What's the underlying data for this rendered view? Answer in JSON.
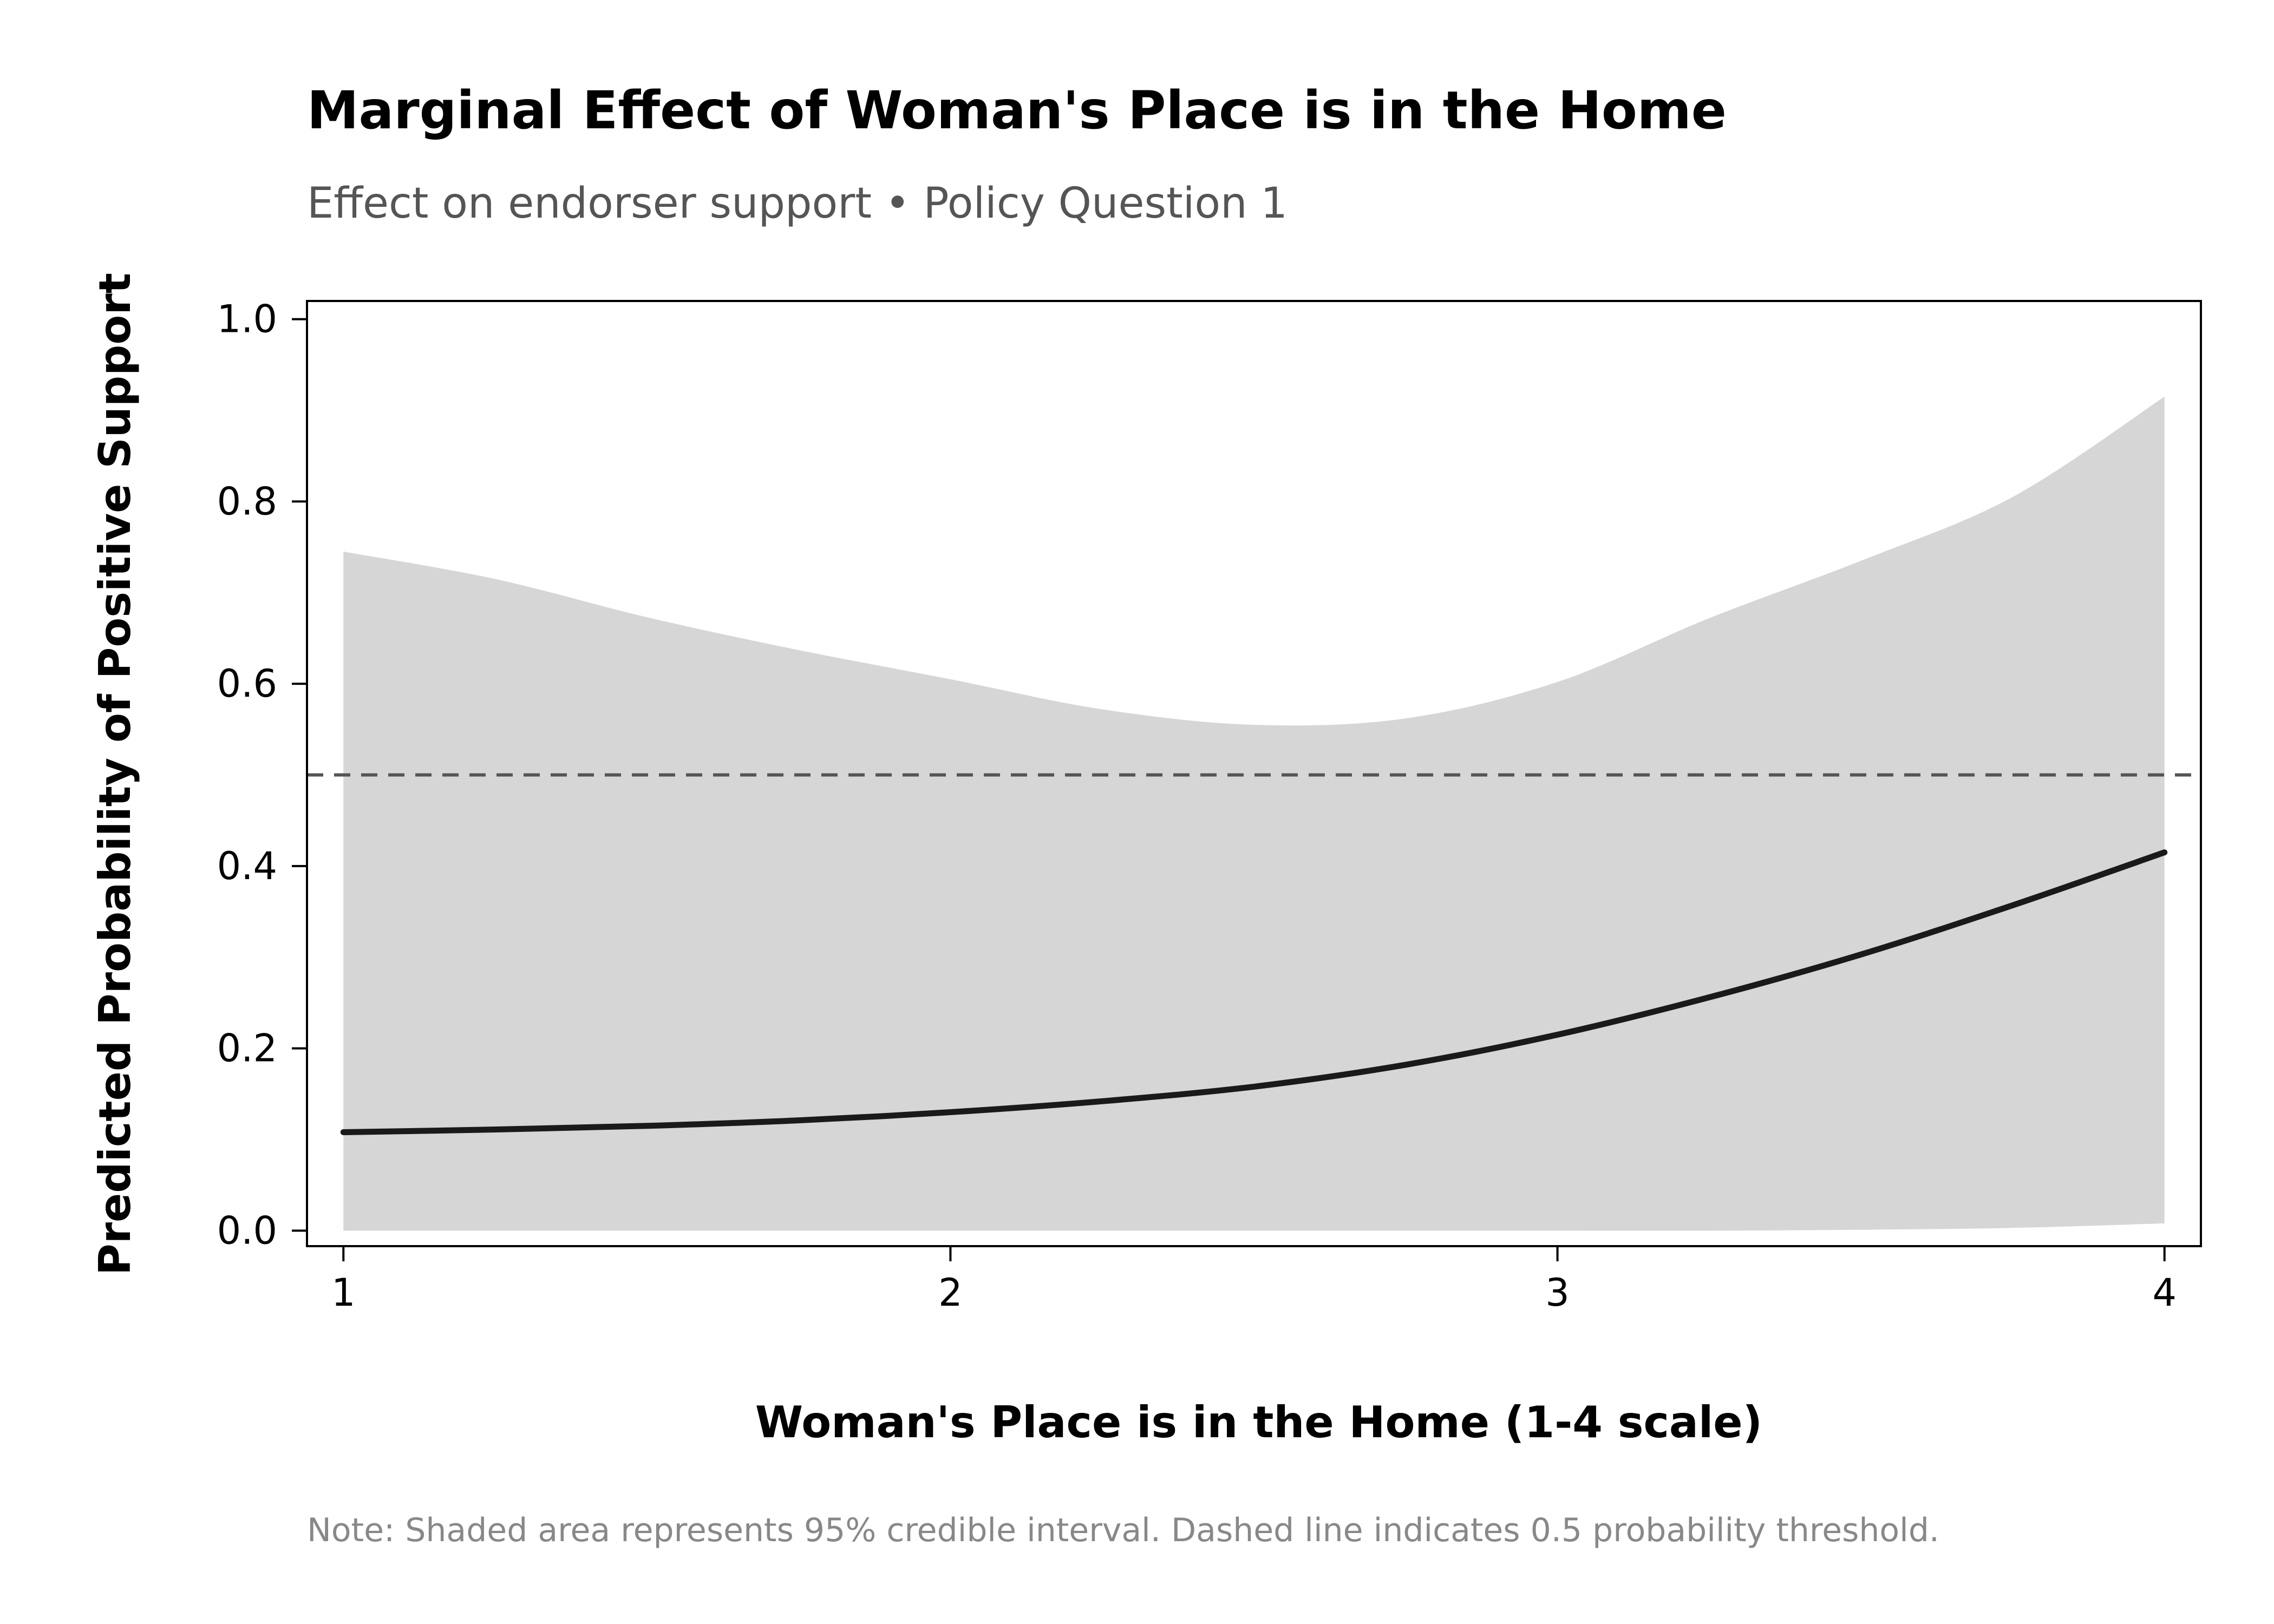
{
  "chart_data": {
    "type": "line",
    "title": "Marginal Effect of Woman's Place is in the Home",
    "subtitle": "Effect on endorser support • Policy Question 1",
    "xlabel": "Woman's Place is in the Home (1-4 scale)",
    "ylabel": "Predicted Probability of Positive Support",
    "note": "Note: Shaded area represents 95% credible interval. Dashed line indicates 0.5 probability threshold.",
    "xlim": [
      0.94,
      4.06
    ],
    "ylim": [
      -0.017,
      1.02
    ],
    "x_ticks": [
      1,
      2,
      3,
      4
    ],
    "x_tick_labels": [
      "1",
      "2",
      "3",
      "4"
    ],
    "y_ticks": [
      0.0,
      0.2,
      0.4,
      0.6,
      0.8,
      1.0
    ],
    "y_tick_labels": [
      "0.0",
      "0.2",
      "0.4",
      "0.6",
      "0.8",
      "1.0"
    ],
    "grid": false,
    "threshold": 0.5,
    "colors": {
      "line": "#1a1a1a",
      "band": "#d6d6d6",
      "threshold": "#555555",
      "frame": "#000000"
    },
    "series": [
      {
        "x": [
          1.0,
          1.25,
          1.5,
          1.75,
          2.0,
          2.25,
          2.5,
          2.75,
          3.0,
          3.25,
          3.5,
          3.75,
          4.0
        ],
        "y": [
          0.108,
          0.111,
          0.115,
          0.121,
          0.13,
          0.142,
          0.158,
          0.182,
          0.215,
          0.256,
          0.303,
          0.357,
          0.415
        ],
        "lower": [
          0.0,
          0.0,
          0.0,
          0.0,
          0.0,
          0.0,
          0.0,
          0.0,
          0.0,
          0.0,
          0.001,
          0.003,
          0.008
        ],
        "upper": [
          0.745,
          0.715,
          0.673,
          0.637,
          0.605,
          0.572,
          0.555,
          0.562,
          0.602,
          0.672,
          0.735,
          0.805,
          0.915
        ]
      }
    ]
  }
}
